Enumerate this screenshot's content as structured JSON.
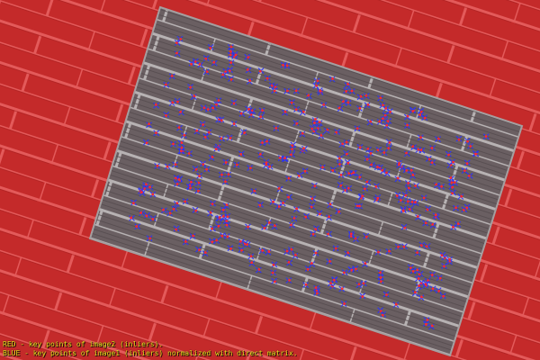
{
  "legend": {
    "red_text": "RED -  key points of image2 (inliers).",
    "blue_text": "BLUE - key points of image1 (inliers) normalized with direct matrix."
  },
  "colors": {
    "background_red": "#c42a2a",
    "brick_mortar": "#e05050",
    "image_gray": "#6e6466",
    "image_border": "#a59fa0",
    "keypoint_red": "#ff2a2a",
    "keypoint_blue": "#2a33ff",
    "legend_text": "#f2e020"
  }
}
